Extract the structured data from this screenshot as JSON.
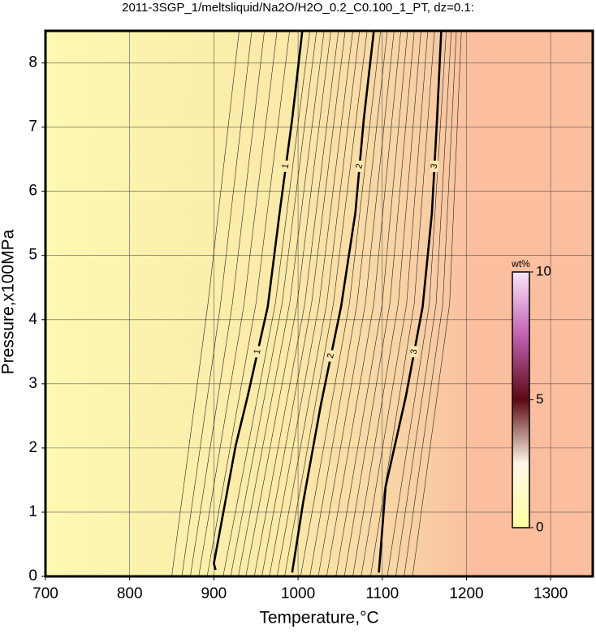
{
  "chart_data": {
    "type": "contour",
    "title": "2011-3SGP_1/meltsliquid/Na2O/H2O_0.2_C0.100_1_PT, dz=0.1:",
    "x_label": "Temperature,°C",
    "y_label": "Pressure,x100MPa",
    "xlim": [
      700,
      1350
    ],
    "ylim": [
      0,
      8.5
    ],
    "xticks": [
      700,
      800,
      900,
      1000,
      1100,
      1200,
      1300
    ],
    "yticks": [
      0,
      1,
      2,
      3,
      4,
      5,
      6,
      7,
      8
    ],
    "grid": true,
    "contours": [
      {
        "level": 1,
        "x": [
          902,
          900,
          926,
          940,
          964,
          978,
          993,
          1005
        ],
        "y": [
          0.1,
          0.2,
          2.04,
          2.8,
          4.2,
          5.66,
          7.12,
          8.5
        ]
      },
      {
        "level": 2,
        "x": [
          993,
          1006,
          1027,
          1051,
          1068,
          1078,
          1090
        ],
        "y": [
          0.06,
          1.15,
          2.67,
          4.2,
          5.66,
          7.12,
          8.5
        ]
      },
      {
        "level": 3,
        "x": [
          1096,
          1104,
          1128,
          1148,
          1159,
          1165,
          1170
        ],
        "y": [
          0.06,
          1.4,
          2.8,
          4.2,
          5.66,
          7.12,
          8.5
        ]
      }
    ],
    "minor_contours": [
      {
        "level": 0.5,
        "x": [
          850,
          893,
          930
        ],
        "y": [
          0,
          4.25,
          8.5
        ]
      },
      {
        "level": 0.6,
        "x": [
          862,
          908,
          945
        ],
        "y": [
          0,
          4.25,
          8.5
        ]
      },
      {
        "level": 0.7,
        "x": [
          872,
          922,
          960
        ],
        "y": [
          0,
          4.25,
          8.5
        ]
      },
      {
        "level": 0.8,
        "x": [
          882,
          936,
          975
        ],
        "y": [
          0,
          4.25,
          8.5
        ]
      },
      {
        "level": 0.9,
        "x": [
          892,
          950,
          990
        ],
        "y": [
          0,
          4.25,
          8.5
        ]
      },
      {
        "level": 1.1,
        "x": [
          911,
          973,
          1014
        ],
        "y": [
          0,
          4.25,
          8.5
        ]
      },
      {
        "level": 1.2,
        "x": [
          920,
          981,
          1022
        ],
        "y": [
          0,
          4.25,
          8.5
        ]
      },
      {
        "level": 1.3,
        "x": [
          929,
          990,
          1031
        ],
        "y": [
          0,
          4.25,
          8.5
        ]
      },
      {
        "level": 1.4,
        "x": [
          938,
          999,
          1039
        ],
        "y": [
          0,
          4.25,
          8.5
        ]
      },
      {
        "level": 1.5,
        "x": [
          948,
          1008,
          1048
        ],
        "y": [
          0,
          4.25,
          8.5
        ]
      },
      {
        "level": 1.6,
        "x": [
          957,
          1016,
          1056
        ],
        "y": [
          0,
          4.25,
          8.5
        ]
      },
      {
        "level": 1.7,
        "x": [
          966,
          1025,
          1065
        ],
        "y": [
          0,
          4.25,
          8.5
        ]
      },
      {
        "level": 1.8,
        "x": [
          975,
          1034,
          1073
        ],
        "y": [
          0,
          4.25,
          8.5
        ]
      },
      {
        "level": 1.9,
        "x": [
          984,
          1042,
          1082
        ],
        "y": [
          0,
          4.25,
          8.5
        ]
      },
      {
        "level": 2.1,
        "x": [
          1003,
          1061,
          1098
        ],
        "y": [
          0,
          4.25,
          8.5
        ]
      },
      {
        "level": 2.2,
        "x": [
          1014,
          1070,
          1106
        ],
        "y": [
          0,
          4.25,
          8.5
        ]
      },
      {
        "level": 2.3,
        "x": [
          1024,
          1080,
          1114
        ],
        "y": [
          0,
          4.25,
          8.5
        ]
      },
      {
        "level": 2.4,
        "x": [
          1034,
          1090,
          1122
        ],
        "y": [
          0,
          4.25,
          8.5
        ]
      },
      {
        "level": 2.5,
        "x": [
          1045,
          1100,
          1130
        ],
        "y": [
          0,
          4.25,
          8.5
        ]
      },
      {
        "level": 2.6,
        "x": [
          1055,
          1109,
          1138
        ],
        "y": [
          0,
          4.25,
          8.5
        ]
      },
      {
        "level": 2.7,
        "x": [
          1065,
          1119,
          1146
        ],
        "y": [
          0,
          4.25,
          8.5
        ]
      },
      {
        "level": 2.8,
        "x": [
          1075,
          1129,
          1154
        ],
        "y": [
          0,
          4.25,
          8.5
        ]
      },
      {
        "level": 2.9,
        "x": [
          1086,
          1138,
          1162
        ],
        "y": [
          0,
          4.25,
          8.5
        ]
      },
      {
        "level": 3.1,
        "x": [
          1106,
          1156,
          1176
        ],
        "y": [
          0,
          4.25,
          8.5
        ]
      },
      {
        "level": 3.2,
        "x": [
          1116,
          1164,
          1182
        ],
        "y": [
          0,
          4.25,
          8.5
        ]
      },
      {
        "level": 3.3,
        "x": [
          1126,
          1172,
          1188
        ],
        "y": [
          0,
          4.25,
          8.5
        ]
      },
      {
        "level": 3.4,
        "x": [
          1136,
          1180,
          1194
        ],
        "y": [
          0,
          4.25,
          8.5
        ]
      }
    ],
    "colorbar": {
      "label": "wt%",
      "lim": [
        0,
        10
      ],
      "ticks": [
        0,
        5,
        10
      ],
      "colors": [
        "#ffffa0",
        "#fff8e8",
        "#5a0a14",
        "#c060b0",
        "#fbe6fb"
      ]
    }
  }
}
